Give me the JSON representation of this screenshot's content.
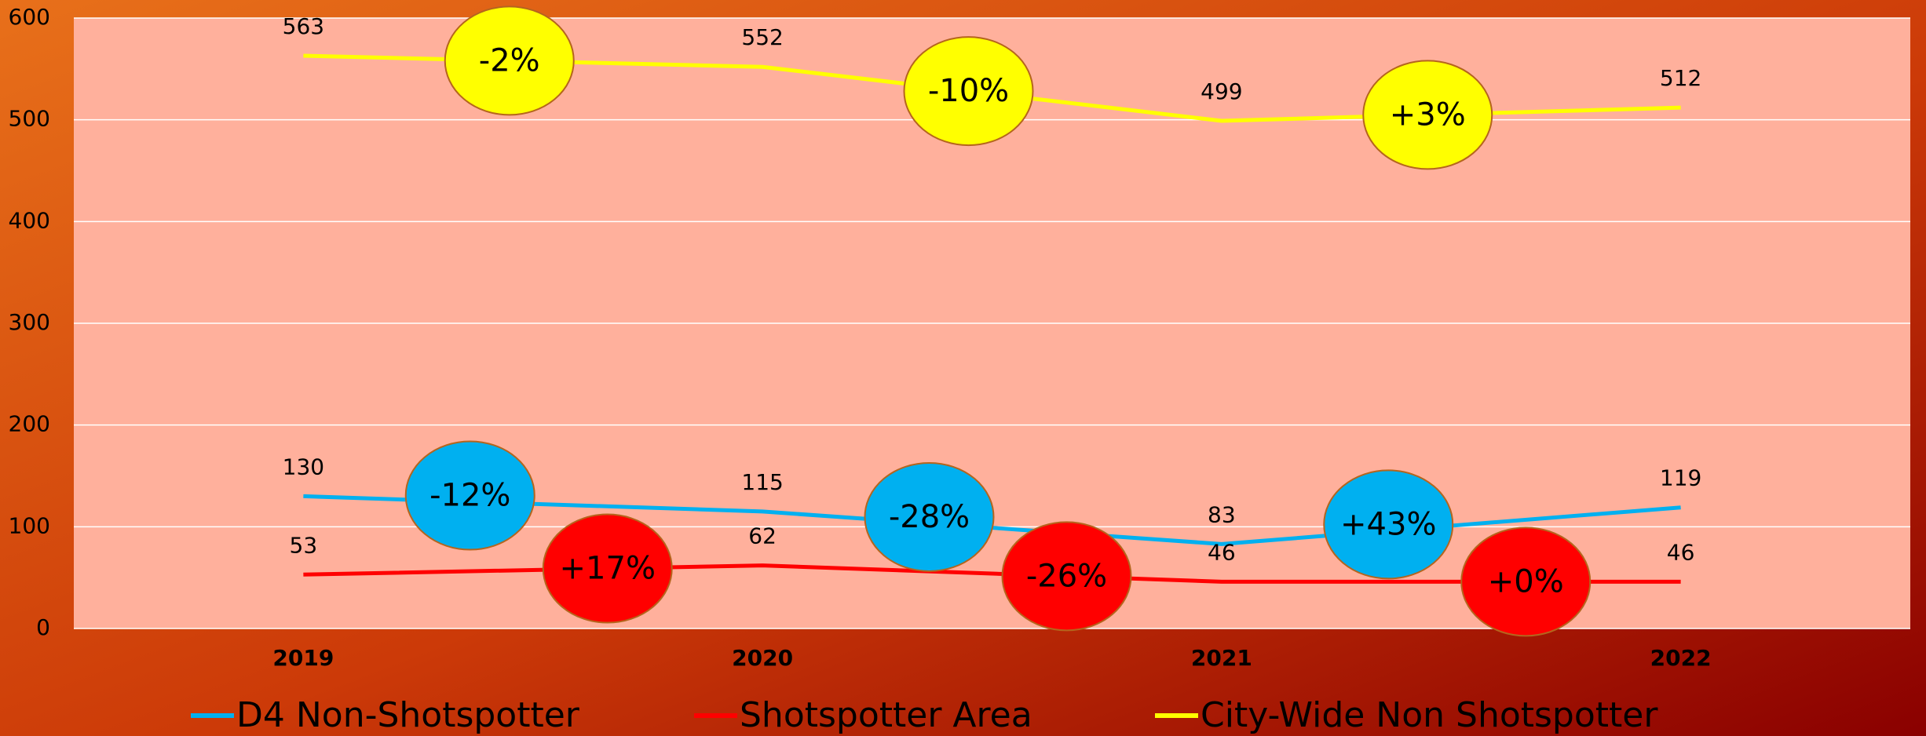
{
  "chart_data": {
    "type": "line",
    "categories": [
      "2019",
      "2020",
      "2021",
      "2022"
    ],
    "series": [
      {
        "name": "D4 Non-Shotspotter",
        "color": "#00b0f0",
        "values": [
          130,
          115,
          83,
          119
        ],
        "changes": [
          "-12%",
          "-28%",
          "+43%"
        ]
      },
      {
        "name": "Shotspotter Area",
        "color": "#ff0000",
        "values": [
          53,
          62,
          46,
          46
        ],
        "changes": [
          "+17%",
          "-26%",
          "+0%"
        ]
      },
      {
        "name": "City-Wide Non Shotspotter",
        "color": "#ffff00",
        "values": [
          563,
          552,
          499,
          512
        ],
        "changes": [
          "-2%",
          "-10%",
          "+3%"
        ]
      }
    ],
    "ylim": [
      0,
      600
    ],
    "yticks": [
      0,
      100,
      200,
      300,
      400,
      500,
      600
    ],
    "grid": true,
    "legend": "bottom"
  }
}
